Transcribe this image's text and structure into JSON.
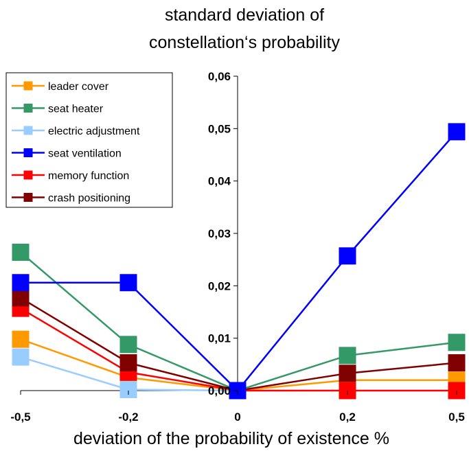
{
  "chart_data": {
    "type": "line",
    "title_line1": "standard deviation of",
    "title_line2": "constellation‘s probability",
    "xlabel": "deviation of the probability of existence  %",
    "ylabel": "",
    "categories": [
      "-0,5",
      "-0,2",
      "0",
      "0,2",
      "0,5"
    ],
    "ylim": [
      0,
      0.06
    ],
    "yticks": [
      "0,00",
      "0,01",
      "0,02",
      "0,03",
      "0,04",
      "0,05",
      "0,06"
    ],
    "grid": false,
    "legend_position": "top-left",
    "marker": "square",
    "series": [
      {
        "name": "leader cover",
        "color": "#FF9900",
        "values": [
          0.0098,
          0.0025,
          0.0,
          0.002,
          0.002
        ]
      },
      {
        "name": "seat heater",
        "color": "#339966",
        "values": [
          0.0264,
          0.0088,
          0.0,
          0.0067,
          0.0092
        ]
      },
      {
        "name": "electric adjustment",
        "color": "#99CCFF",
        "values": [
          0.0064,
          0.0002,
          0.0,
          0.0,
          0.0
        ]
      },
      {
        "name": "seat ventilation",
        "color": "#0000FF",
        "values": [
          0.0206,
          0.0206,
          0.0,
          0.0257,
          0.0494
        ]
      },
      {
        "name": "memory function",
        "color": "#FF0000",
        "values": [
          0.0157,
          0.0035,
          0.0,
          0.0,
          0.0
        ]
      },
      {
        "name": "crash positioning",
        "color": "#800000",
        "values": [
          0.0177,
          0.0053,
          0.0,
          0.0033,
          0.0053
        ]
      }
    ]
  }
}
